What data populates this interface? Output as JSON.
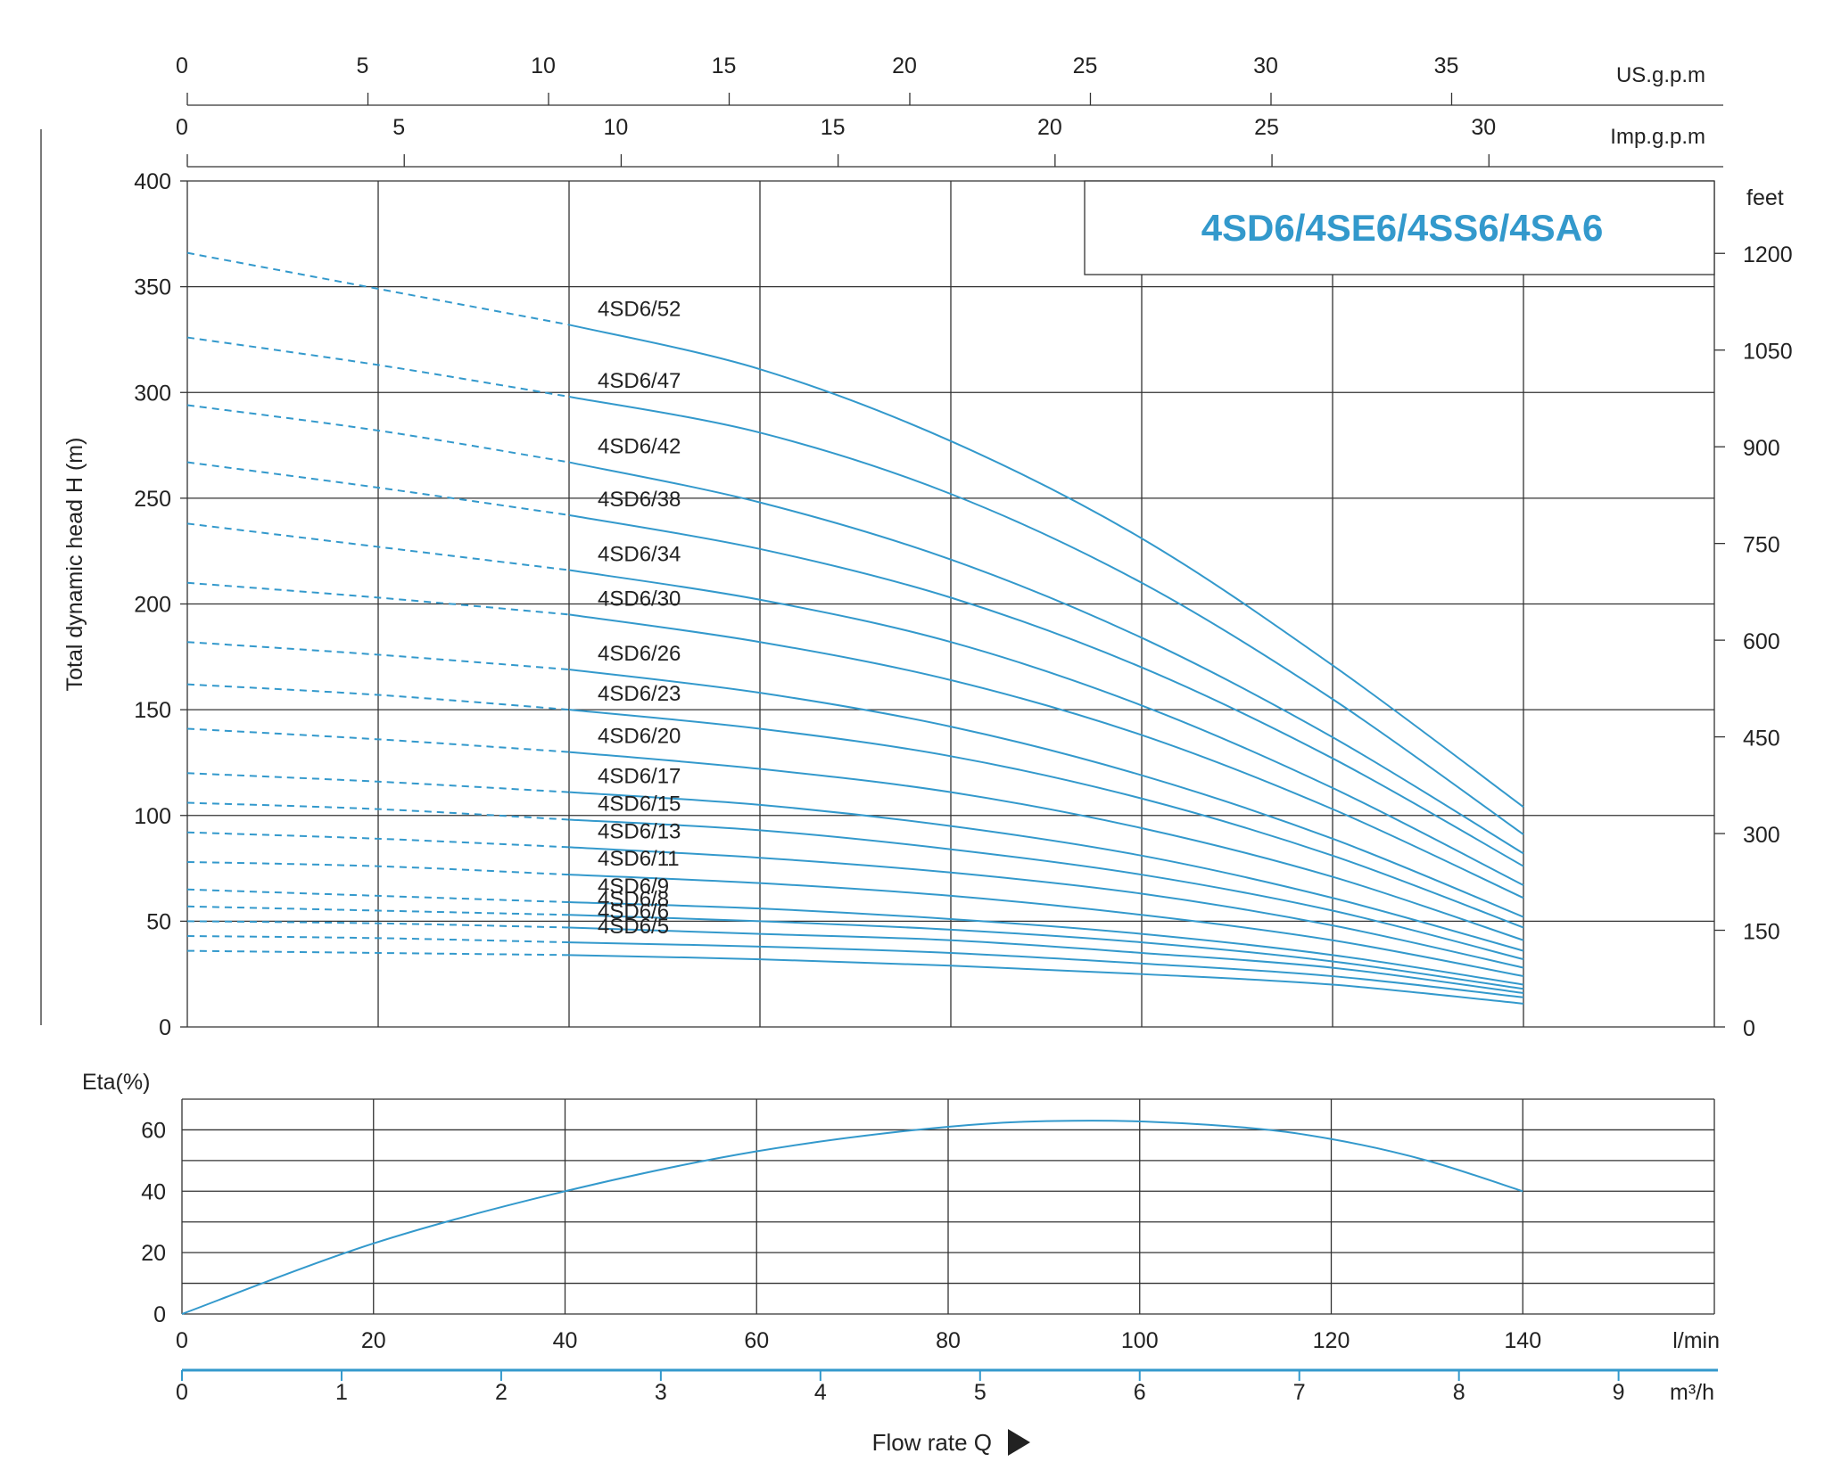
{
  "chart_data": [
    {
      "type": "line",
      "title": "4SD6/4SE6/4SS6/4SA6",
      "ylabel": "Total dynamic head H (m)",
      "y2label": "feet",
      "ylim": [
        0,
        400
      ],
      "yticks": [
        0,
        50,
        100,
        150,
        200,
        250,
        300,
        350,
        400
      ],
      "y2ticks": [
        0,
        150,
        300,
        450,
        600,
        750,
        900,
        1050,
        1200
      ],
      "xlim": [
        0,
        160
      ],
      "top_axes": [
        {
          "label": "US.g.p.m",
          "ticks": [
            0,
            5,
            10,
            15,
            20,
            25,
            30,
            35
          ],
          "lpm_per_unit": 3.785
        },
        {
          "label": "Imp.g.p.m",
          "ticks": [
            0,
            5,
            10,
            15,
            20,
            25,
            30
          ],
          "lpm_per_unit": 4.546
        }
      ],
      "x_grid": [
        0,
        20,
        40,
        60,
        80,
        100,
        120,
        140,
        160
      ],
      "grid": true,
      "dashed_range_x": [
        0,
        40
      ],
      "curve_x": [
        0,
        20,
        40,
        60,
        80,
        100,
        120,
        140
      ],
      "series": [
        {
          "name": "4SD6/52",
          "values": [
            366,
            349,
            332,
            311,
            277,
            231,
            171,
            104
          ]
        },
        {
          "name": "4SD6/47",
          "values": [
            326,
            313,
            298,
            281,
            252,
            210,
            155,
            91
          ]
        },
        {
          "name": "4SD6/42",
          "values": [
            294,
            282,
            267,
            248,
            221,
            184,
            137,
            82
          ]
        },
        {
          "name": "4SD6/38",
          "values": [
            267,
            255,
            242,
            226,
            203,
            170,
            127,
            76
          ]
        },
        {
          "name": "4SD6/34",
          "values": [
            238,
            227,
            216,
            202,
            182,
            152,
            113,
            67
          ]
        },
        {
          "name": "4SD6/30",
          "values": [
            210,
            203,
            195,
            182,
            164,
            138,
            103,
            61
          ]
        },
        {
          "name": "4SD6/26",
          "values": [
            182,
            176,
            169,
            158,
            142,
            119,
            89,
            52
          ]
        },
        {
          "name": "4SD6/23",
          "values": [
            162,
            157,
            150,
            141,
            128,
            108,
            81,
            47
          ]
        },
        {
          "name": "4SD6/20",
          "values": [
            141,
            136,
            130,
            122,
            111,
            94,
            71,
            41
          ]
        },
        {
          "name": "4SD6/17",
          "values": [
            120,
            116,
            111,
            105,
            95,
            81,
            61,
            36
          ]
        },
        {
          "name": "4SD6/15",
          "values": [
            106,
            103,
            98,
            93,
            84,
            72,
            55,
            32
          ]
        },
        {
          "name": "4SD6/13",
          "values": [
            92,
            89,
            85,
            80,
            73,
            63,
            48,
            28
          ]
        },
        {
          "name": "4SD6/11",
          "values": [
            78,
            76,
            72,
            68,
            62,
            53,
            41,
            24
          ]
        },
        {
          "name": "4SD6/9",
          "values": [
            65,
            62,
            59,
            56,
            51,
            44,
            34,
            20
          ]
        },
        {
          "name": "4SD6/8",
          "values": [
            57,
            55,
            53,
            50,
            46,
            40,
            31,
            18
          ]
        },
        {
          "name": "4SD6/6",
          "values": [
            50,
            49,
            47,
            44,
            41,
            35,
            28,
            16
          ]
        },
        {
          "name": "4SD6/5",
          "values": [
            43,
            42,
            40,
            38,
            35,
            30,
            24,
            14
          ]
        },
        {
          "name": "",
          "values": [
            36,
            35,
            34,
            32,
            29,
            25,
            20,
            11
          ]
        }
      ]
    },
    {
      "type": "line",
      "ylabel": "Eta(%)",
      "ylim": [
        0,
        70
      ],
      "yticks": [
        0,
        20,
        40,
        60
      ],
      "xlim": [
        0,
        160
      ],
      "x_grid": [
        0,
        20,
        40,
        60,
        80,
        100,
        120,
        140,
        160
      ],
      "grid": true,
      "series": [
        {
          "name": "",
          "x": [
            0,
            20,
            40,
            60,
            80,
            95,
            110,
            120,
            130,
            140
          ],
          "values": [
            0,
            23,
            40,
            53,
            61,
            63,
            61,
            57,
            50,
            40
          ]
        }
      ]
    }
  ],
  "x_axis": {
    "lmin_label": "l/min",
    "lmin_ticks": [
      0,
      20,
      40,
      60,
      80,
      100,
      120,
      140
    ],
    "m3h_label": "m³/h",
    "m3h_ticks": [
      0,
      1,
      2,
      3,
      4,
      5,
      6,
      7,
      8,
      9
    ],
    "flow_label": "Flow rate Q"
  },
  "colors": {
    "curve": "#3399cc",
    "title": "#3399cc",
    "grid": "#333333",
    "text": "#222222"
  }
}
